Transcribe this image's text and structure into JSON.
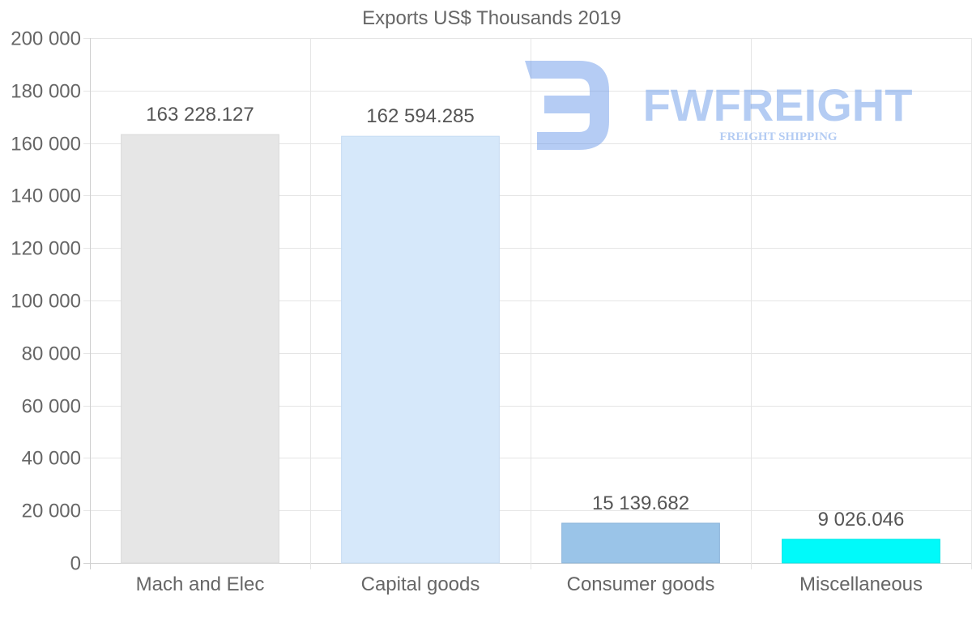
{
  "chart_data": {
    "type": "bar",
    "title": "Exports US$ Thousands 2019",
    "categories": [
      "Mach and Elec",
      "Capital goods",
      "Consumer goods",
      "Miscellaneous"
    ],
    "values": [
      163228.127,
      162594.285,
      15139.682,
      9026.046
    ],
    "value_labels": [
      "163 228.127",
      "162 594.285",
      "15 139.682",
      "9 026.046"
    ],
    "bar_colors": [
      "#e6e6e6",
      "#d6e8fa",
      "#9ac4e8",
      "#00fafa"
    ],
    "bar_border_colors": [
      "#d9d9d9",
      "#c6dcf3",
      "#89b3d9",
      "#00e6e6"
    ],
    "ylim": [
      0,
      200000
    ],
    "yticks": [
      0,
      20000,
      40000,
      60000,
      80000,
      100000,
      120000,
      140000,
      160000,
      180000,
      200000
    ],
    "ytick_labels": [
      "0",
      "20 000",
      "40 000",
      "60 000",
      "80 000",
      "100 000",
      "120 000",
      "140 000",
      "160 000",
      "180 000",
      "200 000"
    ],
    "xlabel": "",
    "ylabel": "",
    "grid": true,
    "gridColor": "#e5e5e5"
  },
  "watermark": {
    "name": "FWFREIGHT",
    "tagline": "FREIGHT SHIPPING",
    "color": "#5b8fe6"
  }
}
